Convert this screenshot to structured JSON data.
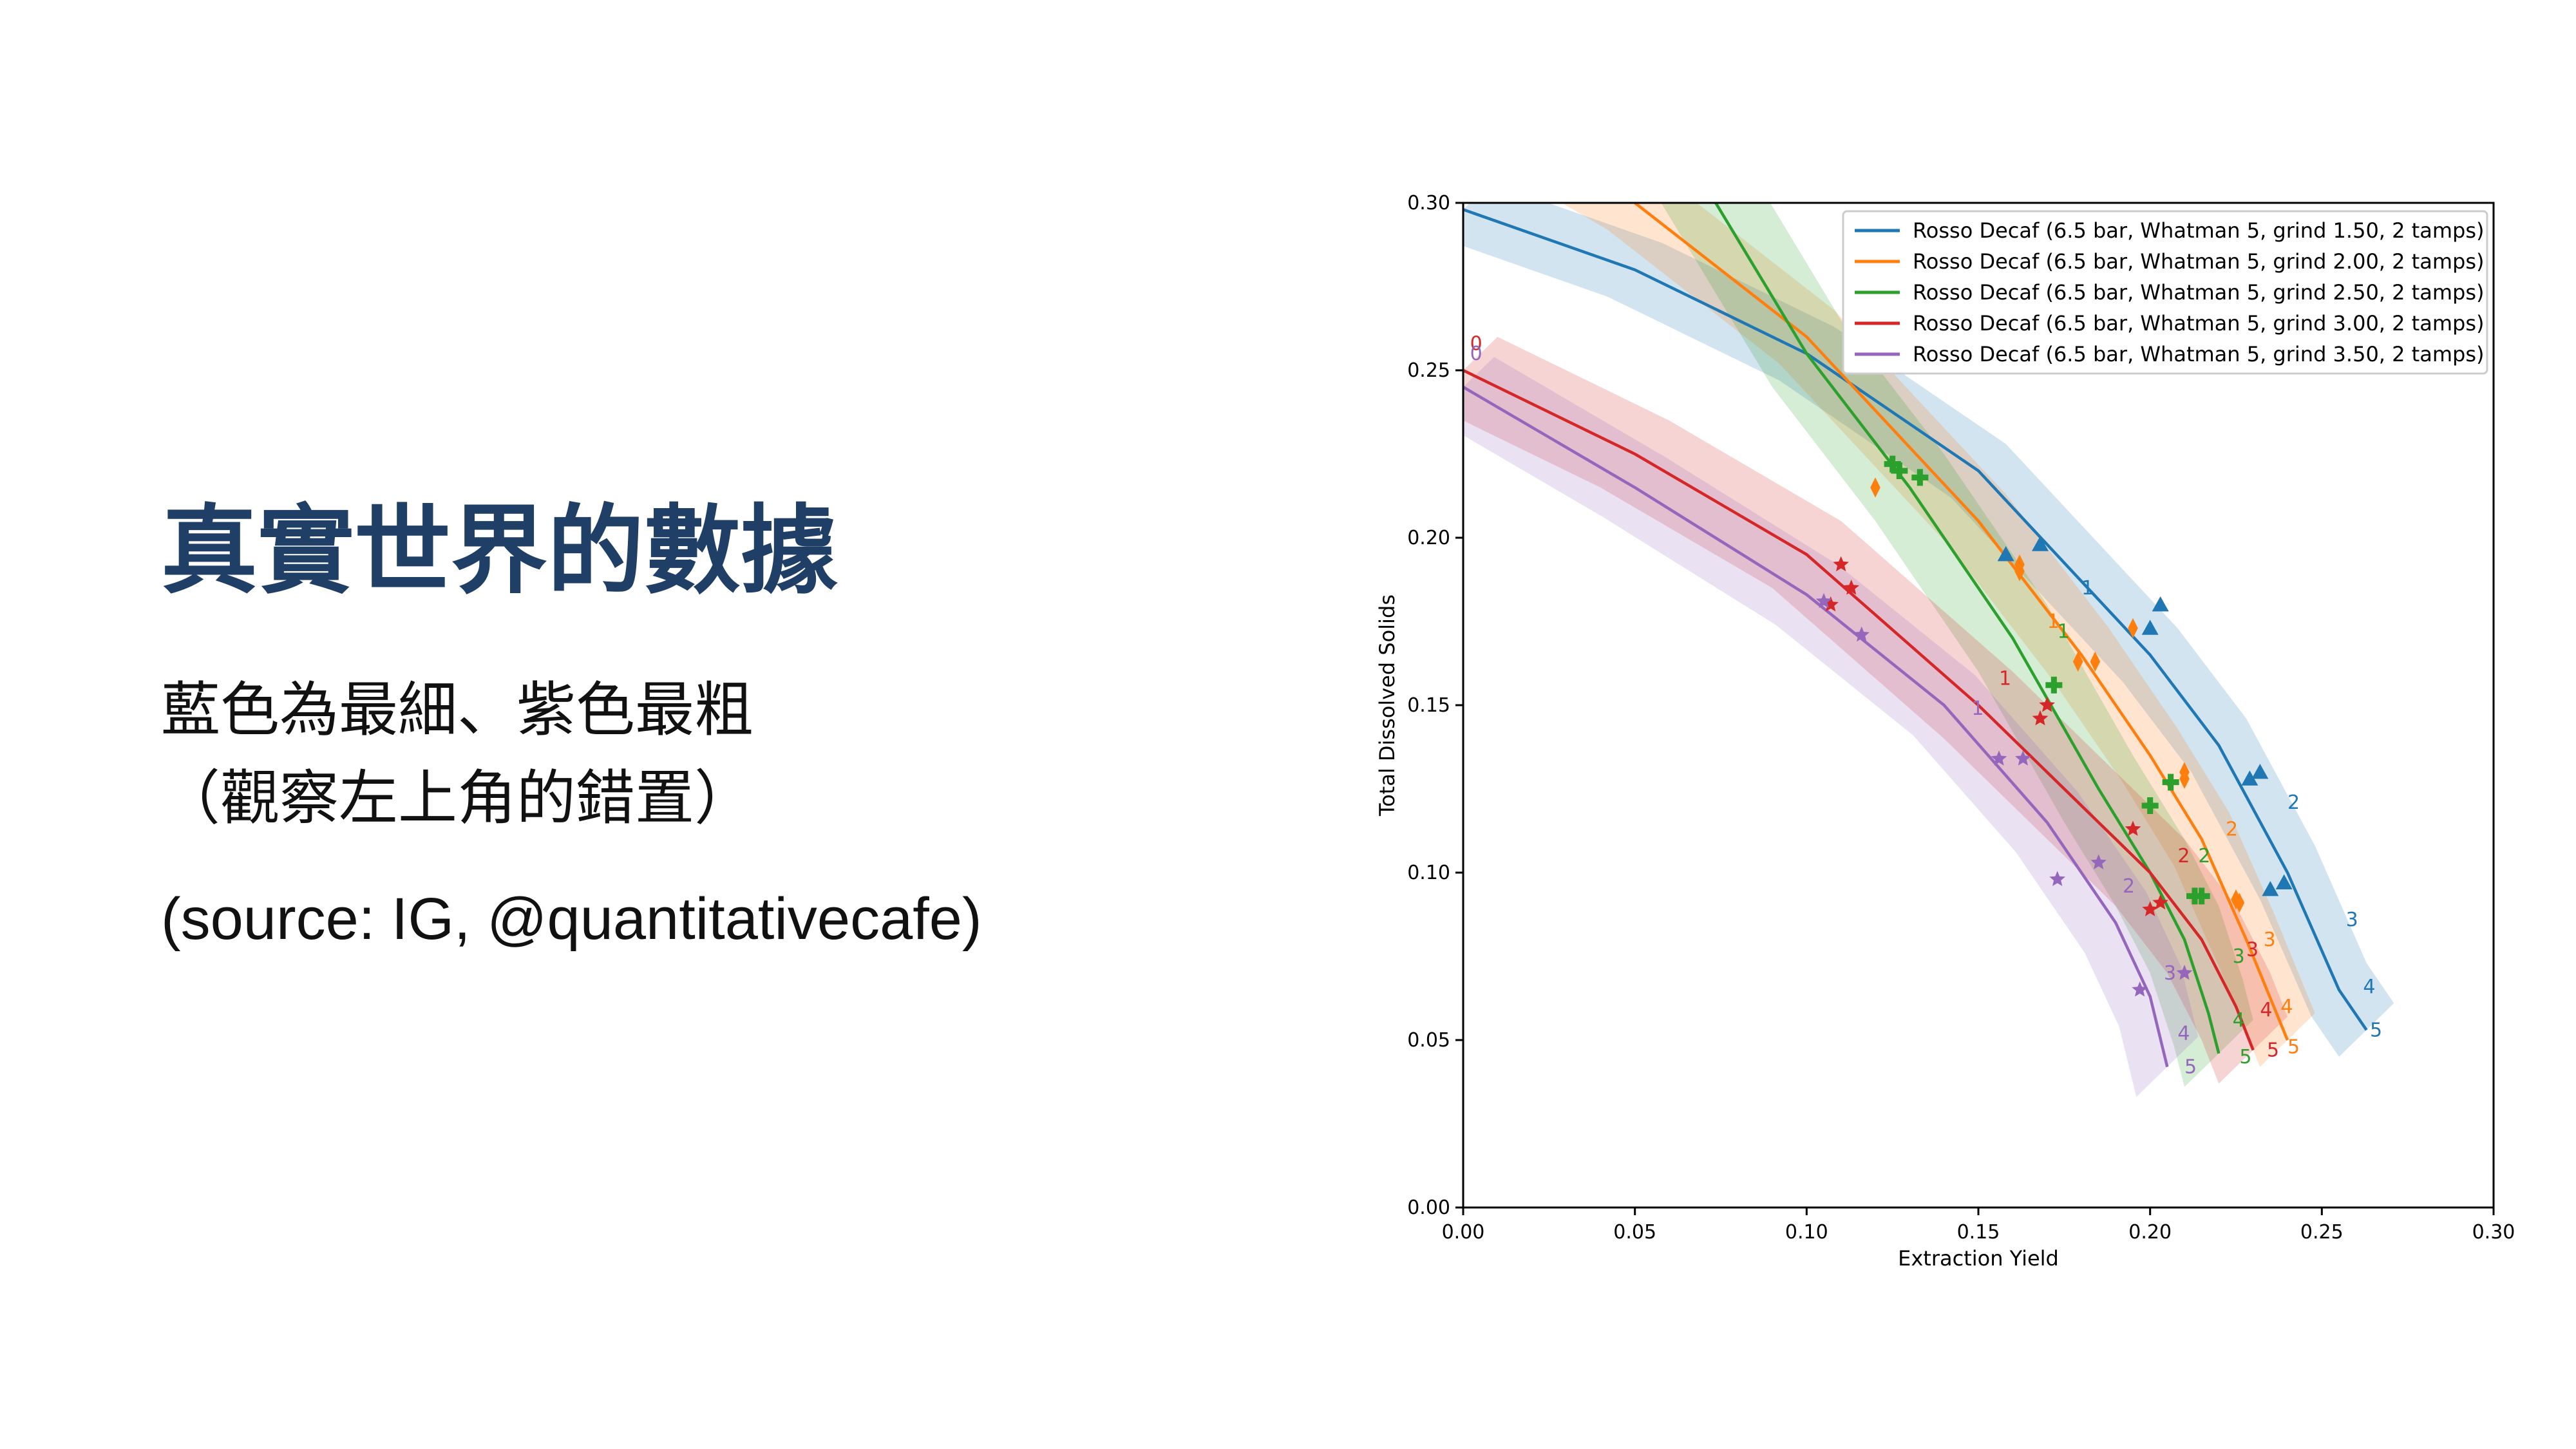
{
  "slide": {
    "title": "真實世界的數據",
    "line1": "藍色為最細、紫色最粗",
    "line2": "（觀察左上角的錯置）",
    "source": "(source: IG, @quantitativecafe)"
  },
  "chart_data": {
    "type": "line",
    "title": "",
    "xlabel": "Extraction Yield",
    "ylabel": "Total Dissolved Solids",
    "xlim": [
      0,
      0.3
    ],
    "ylim": [
      0,
      0.3
    ],
    "xticks": [
      "0.00",
      "0.05",
      "0.10",
      "0.15",
      "0.20",
      "0.25",
      "0.30"
    ],
    "yticks": [
      "0.00",
      "0.05",
      "0.10",
      "0.15",
      "0.20",
      "0.25",
      "0.30"
    ],
    "grid": false,
    "legend_position": "top-right",
    "series": [
      {
        "name": "Rosso Decaf (6.5 bar, Whatman 5, grind 1.50, 2 tamps)",
        "color": "#1f77b4",
        "marker": "triangle",
        "curve_x": [
          0.0,
          0.05,
          0.1,
          0.15,
          0.2,
          0.22,
          0.24,
          0.255,
          0.263
        ],
        "curve_y": [
          0.298,
          0.28,
          0.255,
          0.22,
          0.165,
          0.138,
          0.1,
          0.065,
          0.053
        ],
        "band_width": 0.008,
        "labels": [
          {
            "text": "1",
            "x": 0.18,
            "y": 0.185
          },
          {
            "text": "2",
            "x": 0.24,
            "y": 0.121
          },
          {
            "text": "3",
            "x": 0.257,
            "y": 0.086
          },
          {
            "text": "4",
            "x": 0.262,
            "y": 0.066
          },
          {
            "text": "5",
            "x": 0.264,
            "y": 0.053
          }
        ],
        "points": [
          {
            "x": 0.158,
            "y": 0.195
          },
          {
            "x": 0.168,
            "y": 0.198
          },
          {
            "x": 0.2,
            "y": 0.173
          },
          {
            "x": 0.203,
            "y": 0.18
          },
          {
            "x": 0.229,
            "y": 0.128
          },
          {
            "x": 0.232,
            "y": 0.13
          },
          {
            "x": 0.235,
            "y": 0.095
          },
          {
            "x": 0.239,
            "y": 0.097
          }
        ]
      },
      {
        "name": "Rosso Decaf (6.5 bar, Whatman 5, grind 2.00, 2 tamps)",
        "color": "#ff7f0e",
        "marker": "diamond",
        "curve_x": [
          0.0,
          0.05,
          0.1,
          0.15,
          0.18,
          0.2,
          0.215,
          0.228,
          0.236,
          0.24
        ],
        "curve_y": [
          0.33,
          0.3,
          0.26,
          0.205,
          0.165,
          0.135,
          0.11,
          0.08,
          0.06,
          0.05
        ],
        "band_width": 0.008,
        "labels": [
          {
            "text": "1",
            "x": 0.17,
            "y": 0.175
          },
          {
            "text": "2",
            "x": 0.222,
            "y": 0.113
          },
          {
            "text": "3",
            "x": 0.233,
            "y": 0.08
          },
          {
            "text": "4",
            "x": 0.238,
            "y": 0.06
          },
          {
            "text": "5",
            "x": 0.24,
            "y": 0.048
          }
        ],
        "points": [
          {
            "x": 0.12,
            "y": 0.215
          },
          {
            "x": 0.162,
            "y": 0.19
          },
          {
            "x": 0.162,
            "y": 0.192
          },
          {
            "x": 0.179,
            "y": 0.163
          },
          {
            "x": 0.184,
            "y": 0.163
          },
          {
            "x": 0.195,
            "y": 0.173
          },
          {
            "x": 0.21,
            "y": 0.128
          },
          {
            "x": 0.21,
            "y": 0.13
          },
          {
            "x": 0.225,
            "y": 0.092
          },
          {
            "x": 0.226,
            "y": 0.091
          }
        ]
      },
      {
        "name": "Rosso Decaf (6.5 bar, Whatman 5, grind 2.50, 2 tamps)",
        "color": "#2ca02c",
        "marker": "plus",
        "curve_x": [
          0.0,
          0.05,
          0.1,
          0.13,
          0.16,
          0.185,
          0.2,
          0.21,
          0.217,
          0.22
        ],
        "curve_y": [
          0.4,
          0.34,
          0.255,
          0.215,
          0.17,
          0.125,
          0.1,
          0.08,
          0.058,
          0.046
        ],
        "band_width": 0.01,
        "labels": [
          {
            "text": "1",
            "x": 0.173,
            "y": 0.172
          },
          {
            "text": "2",
            "x": 0.214,
            "y": 0.105
          },
          {
            "text": "3",
            "x": 0.224,
            "y": 0.075
          },
          {
            "text": "4",
            "x": 0.224,
            "y": 0.056
          },
          {
            "text": "5",
            "x": 0.226,
            "y": 0.045
          }
        ],
        "points": [
          {
            "x": 0.125,
            "y": 0.222
          },
          {
            "x": 0.127,
            "y": 0.22
          },
          {
            "x": 0.133,
            "y": 0.218
          },
          {
            "x": 0.172,
            "y": 0.156
          },
          {
            "x": 0.2,
            "y": 0.12
          },
          {
            "x": 0.206,
            "y": 0.127
          },
          {
            "x": 0.213,
            "y": 0.093
          },
          {
            "x": 0.215,
            "y": 0.093
          }
        ]
      },
      {
        "name": "Rosso Decaf (6.5 bar, Whatman 5, grind 3.00, 2 tamps)",
        "color": "#d62728",
        "marker": "plus-star",
        "curve_x": [
          0.0,
          0.05,
          0.1,
          0.15,
          0.18,
          0.2,
          0.215,
          0.225,
          0.23
        ],
        "curve_y": [
          0.25,
          0.225,
          0.195,
          0.15,
          0.12,
          0.1,
          0.08,
          0.06,
          0.047
        ],
        "band_width": 0.01,
        "labels": [
          {
            "text": "0",
            "x": 0.002,
            "y": 0.258
          },
          {
            "text": "1",
            "x": 0.156,
            "y": 0.158
          },
          {
            "text": "2",
            "x": 0.208,
            "y": 0.105
          },
          {
            "text": "3",
            "x": 0.228,
            "y": 0.077
          },
          {
            "text": "4",
            "x": 0.232,
            "y": 0.059
          },
          {
            "text": "5",
            "x": 0.234,
            "y": 0.047
          }
        ],
        "points": [
          {
            "x": 0.11,
            "y": 0.192
          },
          {
            "x": 0.107,
            "y": 0.18
          },
          {
            "x": 0.113,
            "y": 0.185
          },
          {
            "x": 0.168,
            "y": 0.146
          },
          {
            "x": 0.17,
            "y": 0.15
          },
          {
            "x": 0.195,
            "y": 0.113
          },
          {
            "x": 0.2,
            "y": 0.089
          },
          {
            "x": 0.203,
            "y": 0.091
          }
        ]
      },
      {
        "name": "Rosso Decaf (6.5 bar, Whatman 5, grind 3.50, 2 tamps)",
        "color": "#9467bd",
        "marker": "star",
        "curve_x": [
          0.0,
          0.05,
          0.1,
          0.14,
          0.17,
          0.19,
          0.2,
          0.205
        ],
        "curve_y": [
          0.245,
          0.215,
          0.183,
          0.15,
          0.115,
          0.085,
          0.063,
          0.042
        ],
        "band_width": 0.009,
        "labels": [
          {
            "text": "0",
            "x": 0.002,
            "y": 0.255
          },
          {
            "text": "1",
            "x": 0.148,
            "y": 0.149
          },
          {
            "text": "2",
            "x": 0.192,
            "y": 0.096
          },
          {
            "text": "3",
            "x": 0.204,
            "y": 0.07
          },
          {
            "text": "4",
            "x": 0.208,
            "y": 0.052
          },
          {
            "text": "5",
            "x": 0.21,
            "y": 0.042
          }
        ],
        "points": [
          {
            "x": 0.105,
            "y": 0.181
          },
          {
            "x": 0.116,
            "y": 0.171
          },
          {
            "x": 0.156,
            "y": 0.134
          },
          {
            "x": 0.163,
            "y": 0.134
          },
          {
            "x": 0.173,
            "y": 0.098
          },
          {
            "x": 0.185,
            "y": 0.103
          },
          {
            "x": 0.197,
            "y": 0.065
          },
          {
            "x": 0.21,
            "y": 0.07
          }
        ]
      }
    ]
  }
}
